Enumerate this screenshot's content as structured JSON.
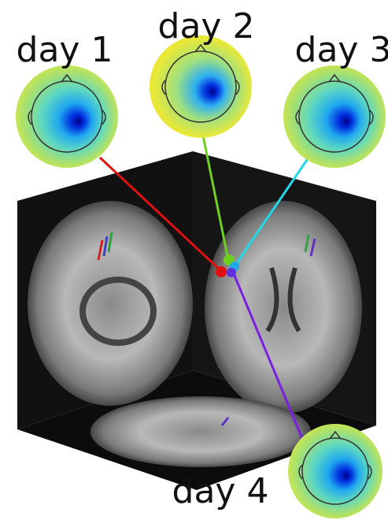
{
  "topomaps": [
    {
      "label": "day 1"
    },
    {
      "label": "day 2"
    },
    {
      "label": "day 3"
    },
    {
      "label": "day 4"
    }
  ]
}
